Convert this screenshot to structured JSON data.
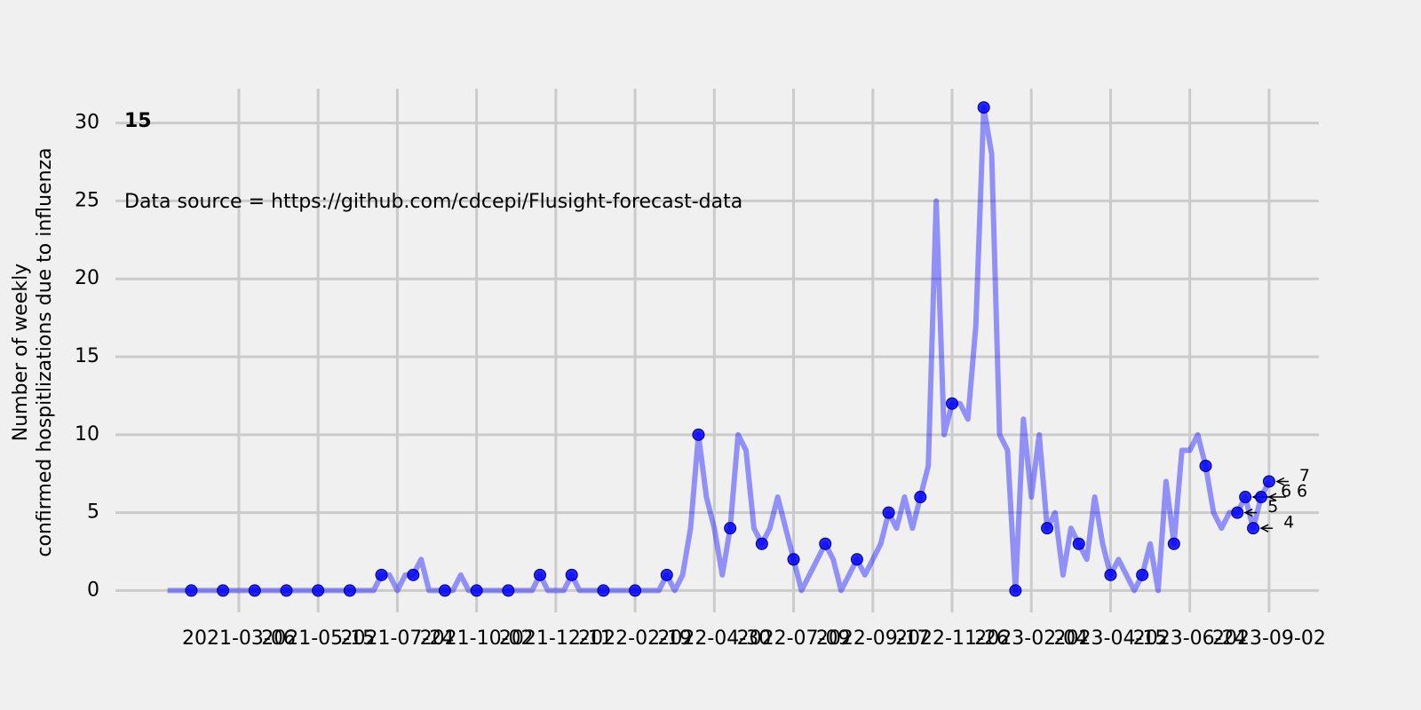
{
  "chart_data": {
    "type": "line",
    "title": "15",
    "annotation": "Data source = https://github.com/cdcepi/Flusight-forecast-data",
    "ylabel": [
      "Number of weekly",
      "confirmed hospitlizations due to influenza"
    ],
    "x": [
      "2021-01-02",
      "2021-01-09",
      "2021-01-16",
      "2021-01-23",
      "2021-01-30",
      "2021-02-06",
      "2021-02-13",
      "2021-02-20",
      "2021-02-27",
      "2021-03-06",
      "2021-03-13",
      "2021-03-20",
      "2021-03-27",
      "2021-04-03",
      "2021-04-10",
      "2021-04-17",
      "2021-04-24",
      "2021-05-01",
      "2021-05-08",
      "2021-05-15",
      "2021-05-22",
      "2021-05-29",
      "2021-06-05",
      "2021-06-12",
      "2021-06-19",
      "2021-06-26",
      "2021-07-03",
      "2021-07-10",
      "2021-07-17",
      "2021-07-24",
      "2021-07-31",
      "2021-08-07",
      "2021-08-14",
      "2021-08-21",
      "2021-08-28",
      "2021-09-04",
      "2021-09-11",
      "2021-09-18",
      "2021-09-25",
      "2021-10-02",
      "2021-10-09",
      "2021-10-16",
      "2021-10-23",
      "2021-10-30",
      "2021-11-06",
      "2021-11-13",
      "2021-11-20",
      "2021-11-27",
      "2021-12-04",
      "2021-12-11",
      "2021-12-18",
      "2021-12-25",
      "2022-01-01",
      "2022-01-08",
      "2022-01-15",
      "2022-01-22",
      "2022-01-29",
      "2022-02-05",
      "2022-02-12",
      "2022-02-19",
      "2022-02-26",
      "2022-03-05",
      "2022-03-12",
      "2022-03-19",
      "2022-03-26",
      "2022-04-02",
      "2022-04-09",
      "2022-04-16",
      "2022-04-23",
      "2022-04-30",
      "2022-05-07",
      "2022-05-14",
      "2022-05-21",
      "2022-05-28",
      "2022-06-04",
      "2022-06-11",
      "2022-06-18",
      "2022-06-25",
      "2022-07-02",
      "2022-07-09",
      "2022-07-16",
      "2022-07-23",
      "2022-07-30",
      "2022-08-06",
      "2022-08-13",
      "2022-08-20",
      "2022-08-27",
      "2022-09-03",
      "2022-09-10",
      "2022-09-17",
      "2022-09-24",
      "2022-10-01",
      "2022-10-08",
      "2022-10-15",
      "2022-10-22",
      "2022-10-29",
      "2022-11-05",
      "2022-11-12",
      "2022-11-19",
      "2022-11-26",
      "2022-12-03",
      "2022-12-10",
      "2022-12-17",
      "2022-12-24",
      "2022-12-31",
      "2023-01-07",
      "2023-01-14",
      "2023-01-21",
      "2023-01-28",
      "2023-02-04",
      "2023-02-11",
      "2023-02-18",
      "2023-02-25",
      "2023-03-04",
      "2023-03-11",
      "2023-03-18",
      "2023-03-25",
      "2023-04-01",
      "2023-04-08",
      "2023-04-15",
      "2023-04-22",
      "2023-04-29",
      "2023-05-06",
      "2023-05-13",
      "2023-05-20",
      "2023-05-27",
      "2023-06-03",
      "2023-06-10",
      "2023-06-17",
      "2023-06-24",
      "2023-07-01",
      "2023-07-08",
      "2023-07-15",
      "2023-07-22",
      "2023-07-29",
      "2023-08-05",
      "2023-08-12",
      "2023-08-19",
      "2023-08-26",
      "2023-09-02"
    ],
    "series": [
      {
        "color": "#0000ff",
        "values": [
          0,
          0,
          0,
          0,
          0,
          0,
          0,
          0,
          0,
          0,
          0,
          0,
          0,
          0,
          0,
          0,
          0,
          0,
          0,
          0,
          0,
          0,
          0,
          0,
          0,
          0,
          0,
          1,
          1,
          0,
          1,
          1,
          2,
          0,
          0,
          0,
          0,
          1,
          0,
          0,
          0,
          0,
          0,
          0,
          0,
          0,
          0,
          1,
          0,
          0,
          0,
          1,
          0,
          0,
          0,
          0,
          0,
          0,
          0,
          0,
          0,
          0,
          0,
          1,
          0,
          1,
          4,
          10,
          6,
          4,
          1,
          4,
          10,
          9,
          4,
          3,
          4,
          6,
          4,
          2,
          0,
          1,
          2,
          3,
          2,
          0,
          1,
          2,
          1,
          2,
          3,
          5,
          4,
          6,
          4,
          6,
          8,
          25,
          10,
          12,
          12,
          11,
          17,
          31,
          28,
          10,
          9,
          0,
          11,
          6,
          10,
          4,
          5,
          1,
          4,
          3,
          2,
          6,
          3,
          1,
          2,
          1,
          0,
          1,
          3,
          0,
          7,
          3,
          9,
          9,
          10,
          8,
          5,
          4,
          5,
          5,
          6,
          4,
          6,
          7
        ]
      }
    ],
    "markevery": [
      3,
      4
    ],
    "annotate_last": 5,
    "xlim": [
      "2020-11-17",
      "2023-10-16"
    ],
    "xticks": [
      "2021-03-06",
      "2021-05-15",
      "2021-07-24",
      "2021-10-02",
      "2021-12-11",
      "2022-02-19",
      "2022-04-30",
      "2022-07-09",
      "2022-09-17",
      "2022-11-26",
      "2023-02-04",
      "2023-04-15",
      "2023-06-24",
      "2023-09-02"
    ],
    "ylim": [
      -1.4,
      32.2
    ],
    "yticks": [
      0,
      5,
      10,
      15,
      20,
      25,
      30
    ],
    "grid": true
  }
}
